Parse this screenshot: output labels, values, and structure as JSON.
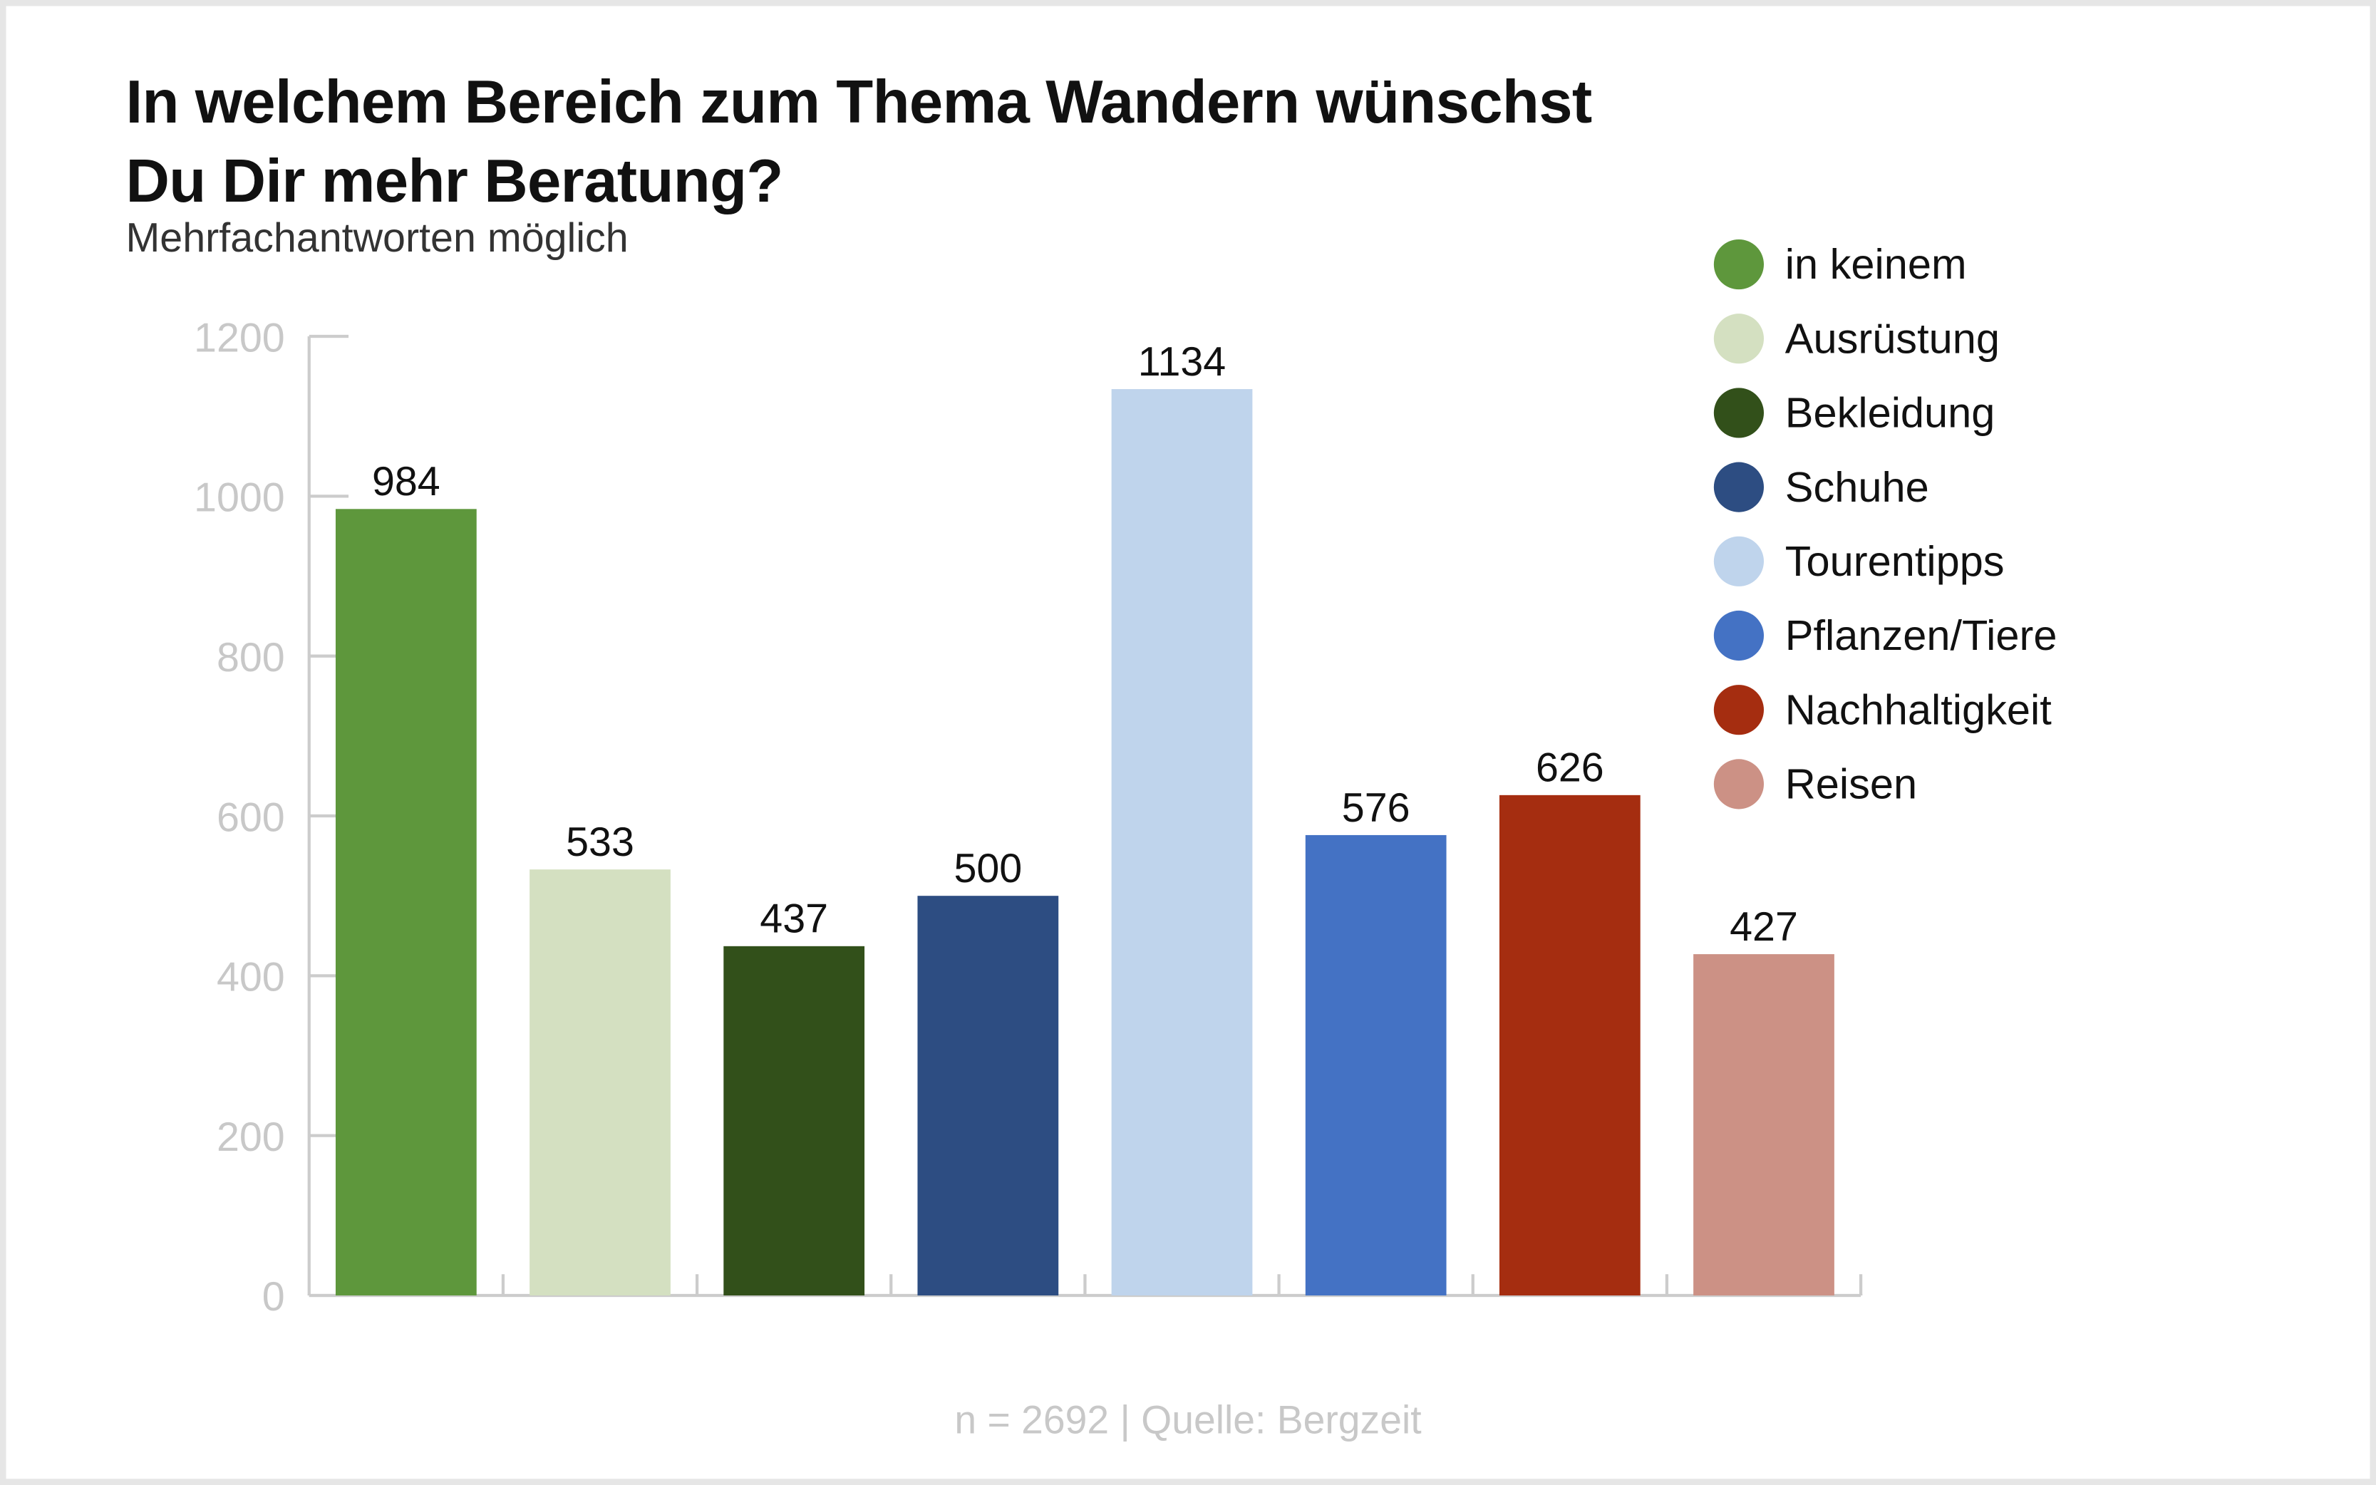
{
  "chart_data": {
    "type": "bar",
    "title_line1": "In welchem Bereich zum Thema Wandern wünschst",
    "title_line2": "Du Dir mehr Beratung?",
    "subtitle": "Mehrfachantworten möglich",
    "footer": "n = 2692 | Quelle: Bergzeit",
    "categories": [
      "in keinem",
      "Ausrüstung",
      "Bekleidung",
      "Schuhe",
      "Tourentipps",
      "Pflanzen/Tiere",
      "Nachhaltigkeit",
      "Reisen"
    ],
    "values": [
      984,
      533,
      437,
      500,
      1134,
      576,
      626,
      427
    ],
    "colors": [
      "#5e973c",
      "#d4e0c1",
      "#32501a",
      "#2d4d82",
      "#bfd4ec",
      "#4472c4",
      "#a52d10",
      "#cc9185"
    ],
    "ylim": [
      0,
      1200
    ],
    "yticks": [
      "0",
      "200",
      "400",
      "600",
      "800",
      "1000",
      "1200"
    ],
    "legend_position": "top-right",
    "grid": false
  }
}
